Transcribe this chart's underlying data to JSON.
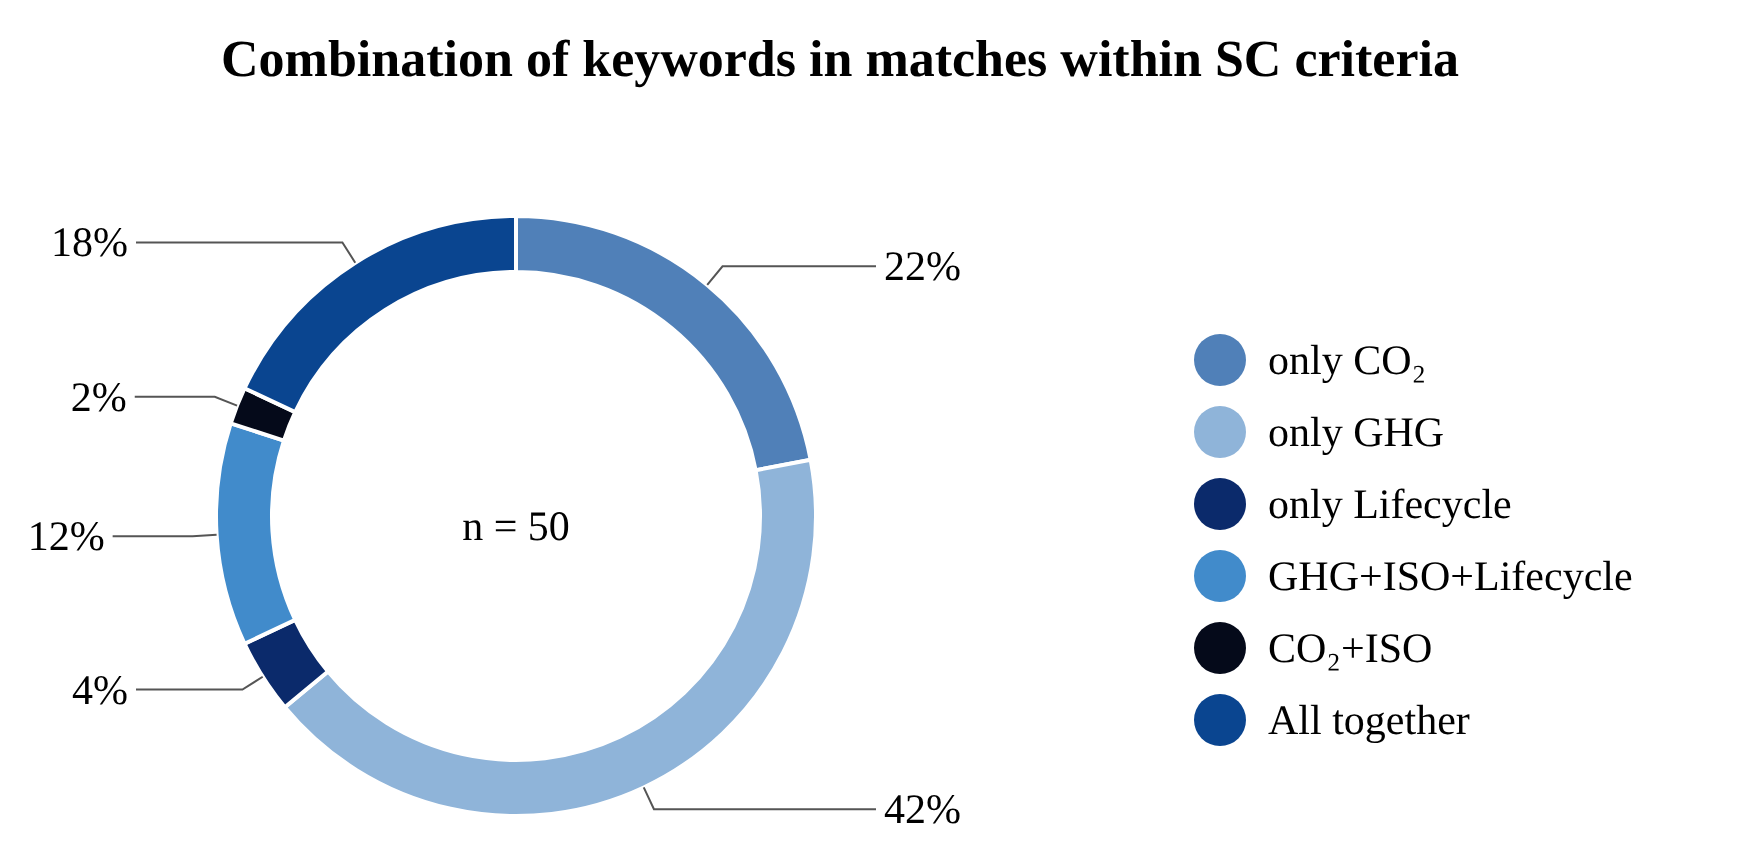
{
  "chart_data": {
    "type": "donut",
    "title": "Combination of keywords in matches within SC criteria",
    "categories": [
      "only CO₂",
      "only GHG",
      "only Lifecycle",
      "GHG+ISO+Lifecycle",
      "CO₂+ISO",
      "All together"
    ],
    "values": [
      22,
      42,
      4,
      12,
      2,
      18
    ],
    "colors": [
      "#5080b8",
      "#8fb4d9",
      "#0b2a6b",
      "#418bcb",
      "#050a1a",
      "#0a4590"
    ],
    "value_labels": [
      "22%",
      "42%",
      "4%",
      "12%",
      "2%",
      "18%"
    ],
    "annotations": [
      "n = 50"
    ],
    "legend": "right"
  }
}
